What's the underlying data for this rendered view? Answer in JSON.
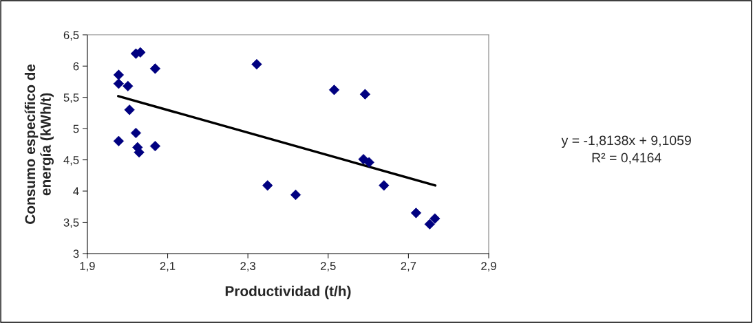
{
  "chart_data": {
    "type": "scatter",
    "xlabel": "Productividad (t/h)",
    "ylabel": "Consumo específico de\nenergía (kWh/t)",
    "xlim": [
      1.9,
      2.9
    ],
    "ylim": [
      3,
      6.5
    ],
    "xticks": [
      {
        "value": 1.9,
        "label": "1,9"
      },
      {
        "value": 2.1,
        "label": "2,1"
      },
      {
        "value": 2.3,
        "label": "2,3"
      },
      {
        "value": 2.5,
        "label": "2,5"
      },
      {
        "value": 2.7,
        "label": "2,7"
      },
      {
        "value": 2.9,
        "label": "2,9"
      }
    ],
    "yticks": [
      3,
      {
        "value": 3.5,
        "label": "3,5"
      },
      4,
      {
        "value": 4.5,
        "label": "4,5"
      },
      5,
      {
        "value": 5.5,
        "label": "5,5"
      },
      6,
      {
        "value": 6.5,
        "label": "6,5"
      }
    ],
    "grid": false,
    "legend": false,
    "marker": "diamond",
    "series": [
      {
        "color": "#000080",
        "x": [
          1.978,
          1.978,
          2.001,
          2.021,
          2.032,
          2.069,
          2.005,
          1.978,
          2.021,
          2.025,
          2.029,
          2.069,
          2.322,
          2.349,
          2.419,
          2.515,
          2.592,
          2.588,
          2.602,
          2.639,
          2.719,
          2.766,
          2.753
        ],
        "values": [
          5.86,
          5.72,
          5.68,
          6.2,
          6.22,
          5.96,
          5.3,
          4.8,
          4.93,
          4.7,
          4.62,
          4.72,
          6.03,
          4.09,
          3.94,
          5.62,
          5.55,
          4.51,
          4.46,
          4.09,
          3.65,
          3.56,
          3.47
        ]
      },
      {
        "type": "line",
        "color": "#000000",
        "marker": "none",
        "line_style": "solid",
        "x": [
          1.977,
          2.767
        ],
        "values": [
          5.52,
          4.09
        ]
      }
    ],
    "annotations": [
      "y = -1,8138x + 9,1059\nR² = 0,4164"
    ]
  }
}
